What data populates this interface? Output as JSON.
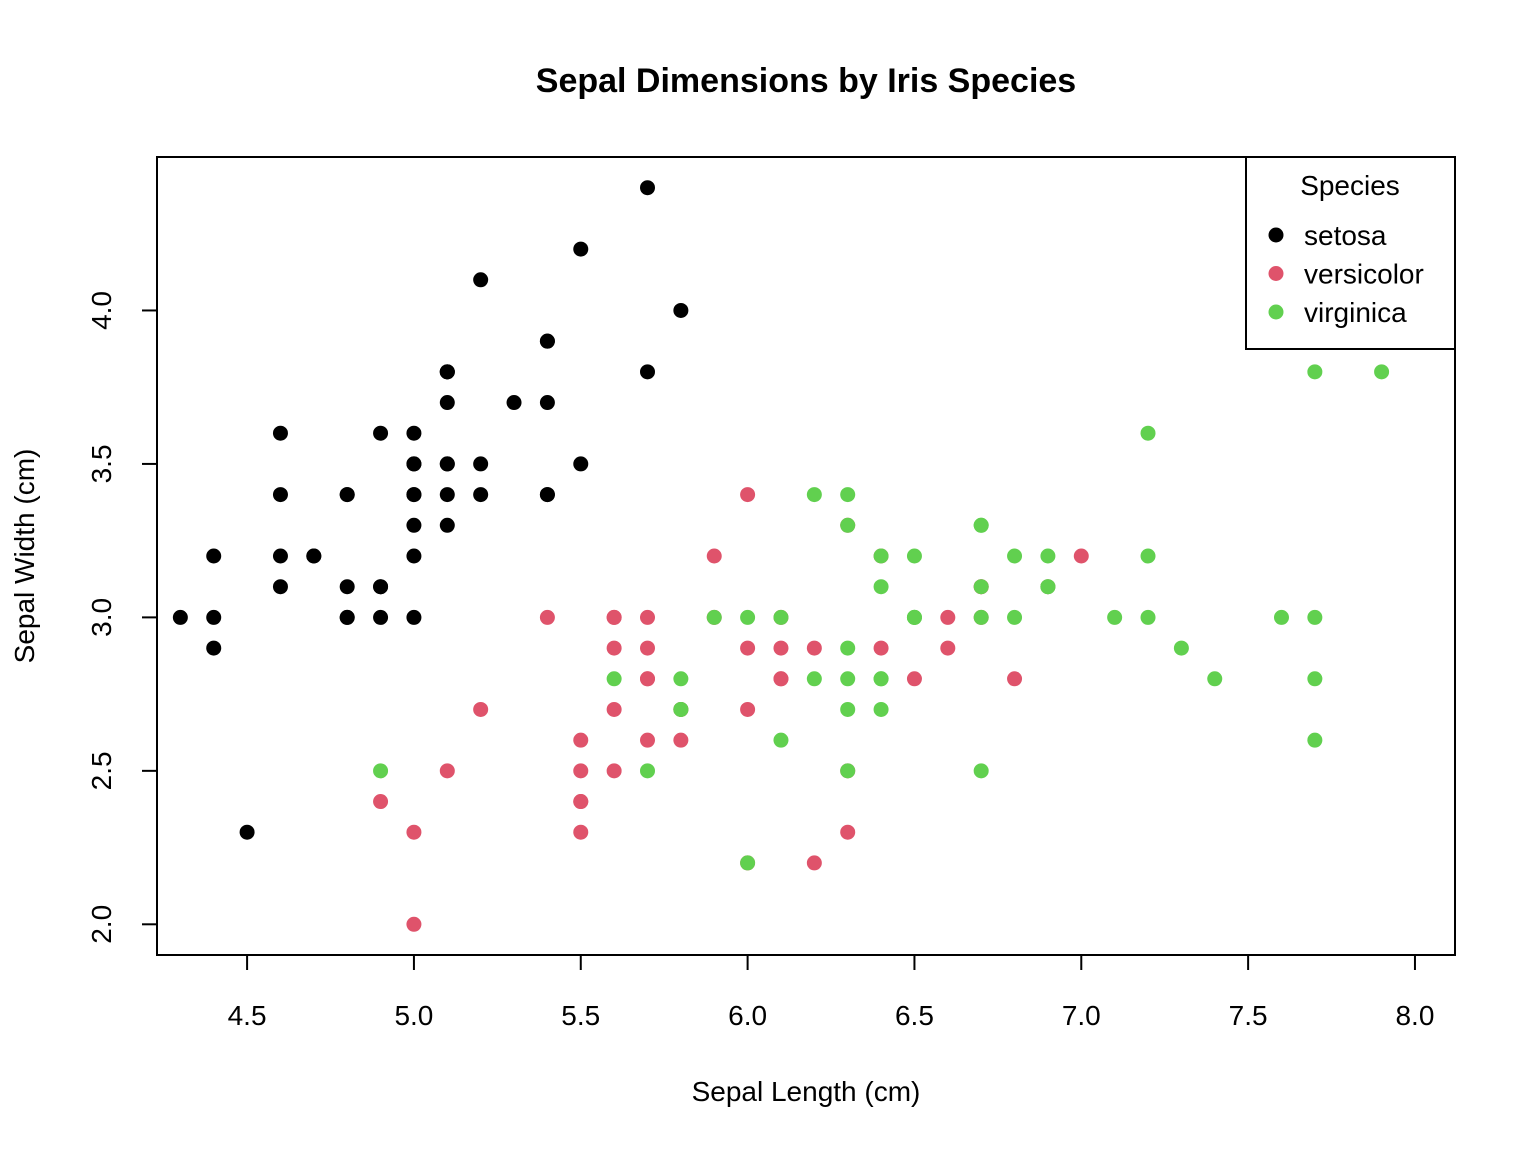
{
  "chart_data": {
    "type": "scatter",
    "title": "Sepal Dimensions by Iris Species",
    "xlabel": "Sepal Length (cm)",
    "ylabel": "Sepal Width (cm)",
    "xlim": [
      4.23,
      8.12
    ],
    "ylim": [
      1.9,
      4.5
    ],
    "xticks": [
      "4.5",
      "5.0",
      "5.5",
      "6.0",
      "6.5",
      "7.0",
      "7.5",
      "8.0"
    ],
    "yticks": [
      "2.0",
      "2.5",
      "3.0",
      "3.5",
      "4.0"
    ],
    "grid": false,
    "legend": {
      "title": "Species",
      "position": "top-right",
      "entries": [
        {
          "name": "setosa",
          "color": "#000000"
        },
        {
          "name": "versicolor",
          "color": "#DF536B"
        },
        {
          "name": "virginica",
          "color": "#61D04F"
        }
      ]
    },
    "series": [
      {
        "name": "setosa",
        "color": "#000000",
        "x": [
          5.1,
          4.9,
          4.7,
          4.6,
          5.0,
          5.4,
          4.6,
          5.0,
          4.4,
          4.9,
          5.4,
          4.8,
          4.8,
          4.3,
          5.8,
          5.7,
          5.4,
          5.1,
          5.7,
          5.1,
          5.4,
          5.1,
          4.6,
          5.1,
          4.8,
          5.0,
          5.0,
          5.2,
          5.2,
          4.7,
          4.8,
          5.4,
          5.2,
          5.5,
          4.9,
          5.0,
          5.5,
          4.9,
          4.4,
          5.1,
          5.0,
          4.5,
          4.4,
          5.0,
          5.1,
          4.8,
          5.1,
          4.6,
          5.3,
          5.0
        ],
        "y": [
          3.5,
          3.0,
          3.2,
          3.1,
          3.6,
          3.9,
          3.4,
          3.4,
          2.9,
          3.1,
          3.7,
          3.4,
          3.0,
          3.0,
          4.0,
          4.4,
          3.9,
          3.5,
          3.8,
          3.8,
          3.4,
          3.7,
          3.6,
          3.3,
          3.4,
          3.0,
          3.4,
          3.5,
          3.4,
          3.2,
          3.1,
          3.4,
          4.1,
          4.2,
          3.1,
          3.2,
          3.5,
          3.6,
          3.0,
          3.4,
          3.5,
          2.3,
          3.2,
          3.5,
          3.8,
          3.0,
          3.8,
          3.2,
          3.7,
          3.3
        ]
      },
      {
        "name": "versicolor",
        "color": "#DF536B",
        "x": [
          7.0,
          6.4,
          6.9,
          5.5,
          6.5,
          5.7,
          6.3,
          4.9,
          6.6,
          5.2,
          5.0,
          5.9,
          6.0,
          6.1,
          5.6,
          6.7,
          5.6,
          5.8,
          6.2,
          5.6,
          5.9,
          6.1,
          6.3,
          6.1,
          6.4,
          6.6,
          6.8,
          6.7,
          6.0,
          5.7,
          5.5,
          5.5,
          5.8,
          6.0,
          5.4,
          6.0,
          6.7,
          6.3,
          5.6,
          5.5,
          5.5,
          6.1,
          5.8,
          5.0,
          5.6,
          5.7,
          5.7,
          6.2,
          5.1,
          5.7
        ],
        "y": [
          3.2,
          3.2,
          3.1,
          2.3,
          2.8,
          2.8,
          3.3,
          2.4,
          2.9,
          2.7,
          2.0,
          3.0,
          2.2,
          2.9,
          2.9,
          3.1,
          3.0,
          2.7,
          2.2,
          2.5,
          3.2,
          2.8,
          2.5,
          2.8,
          2.9,
          3.0,
          2.8,
          3.0,
          2.9,
          2.6,
          2.4,
          2.4,
          2.7,
          2.7,
          3.0,
          3.4,
          3.1,
          2.3,
          3.0,
          2.5,
          2.6,
          3.0,
          2.6,
          2.3,
          2.7,
          3.0,
          2.9,
          2.9,
          2.5,
          2.8
        ]
      },
      {
        "name": "virginica",
        "color": "#61D04F",
        "x": [
          6.3,
          5.8,
          7.1,
          6.3,
          6.5,
          7.6,
          4.9,
          7.3,
          6.7,
          7.2,
          6.5,
          6.4,
          6.8,
          5.7,
          5.8,
          6.4,
          6.5,
          7.7,
          7.7,
          6.0,
          6.9,
          5.6,
          7.7,
          6.3,
          6.7,
          7.2,
          6.2,
          6.1,
          6.4,
          7.2,
          7.4,
          7.9,
          6.4,
          6.3,
          6.1,
          7.7,
          6.3,
          6.4,
          6.0,
          6.9,
          6.7,
          6.9,
          5.8,
          6.8,
          6.7,
          6.7,
          6.3,
          6.5,
          6.2,
          5.9
        ],
        "y": [
          3.3,
          2.7,
          3.0,
          2.9,
          3.0,
          3.0,
          2.5,
          2.9,
          2.5,
          3.6,
          3.2,
          2.7,
          3.0,
          2.5,
          2.8,
          3.2,
          3.0,
          3.8,
          2.6,
          2.2,
          3.2,
          2.8,
          2.8,
          2.7,
          3.3,
          3.2,
          2.8,
          3.0,
          2.8,
          3.0,
          2.8,
          3.8,
          2.8,
          2.8,
          2.6,
          3.0,
          3.4,
          3.1,
          3.0,
          3.1,
          3.1,
          3.1,
          2.7,
          3.2,
          3.3,
          3.0,
          2.5,
          3.0,
          3.4,
          3.0
        ]
      }
    ]
  }
}
